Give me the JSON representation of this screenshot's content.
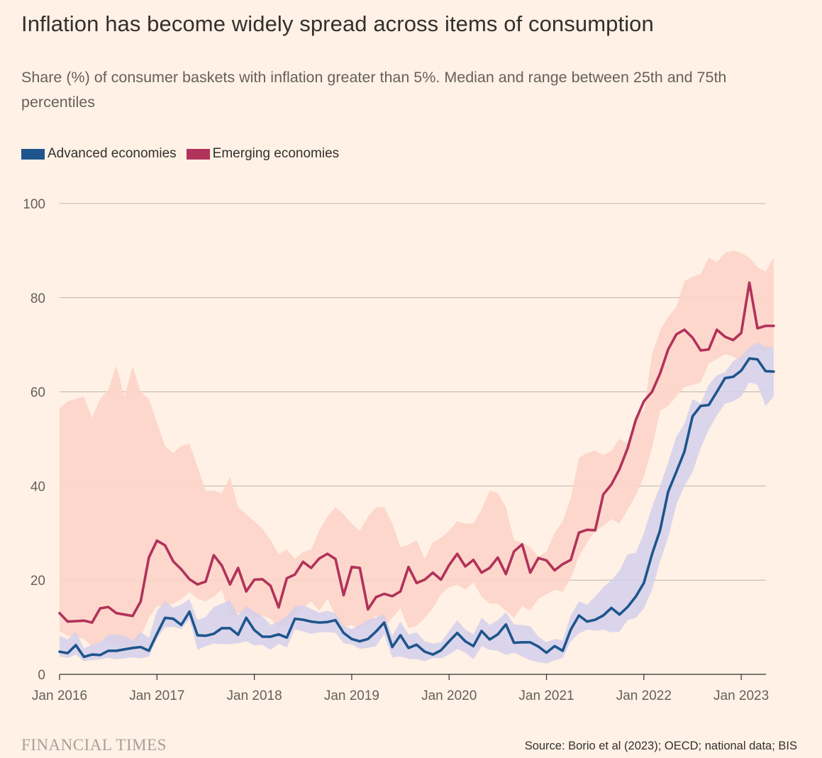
{
  "title": "Inflation has become widely spread across items of consumption",
  "subtitle": "Share (%) of consumer baskets with inflation greater than 5%. Median and range between 25th and 75th percentiles",
  "logo": "FINANCIAL TIMES",
  "source": "Source: Borio et al (2023); OECD; national data; BIS",
  "colors": {
    "background": "#FFF1E5",
    "advanced": "#1E558C",
    "advanced_band": "#D4D0EC",
    "emerging": "#B1325A",
    "emerging_band": "#FDD4C8",
    "grid": "#BFB3A8"
  },
  "chart_data": {
    "type": "line",
    "x_unit": "month",
    "x_start": "2016-01",
    "x_end": "2023-03",
    "ylim": [
      0,
      100
    ],
    "yticks": [
      0,
      20,
      40,
      60,
      80,
      100
    ],
    "xticks": [
      {
        "date": "2016-01",
        "label": "Jan 2016"
      },
      {
        "date": "2017-01",
        "label": "Jan 2017"
      },
      {
        "date": "2018-01",
        "label": "Jan 2018"
      },
      {
        "date": "2019-01",
        "label": "Jan 2019"
      },
      {
        "date": "2020-01",
        "label": "Jan 2020"
      },
      {
        "date": "2021-01",
        "label": "Jan 2021"
      },
      {
        "date": "2022-01",
        "label": "Jan 2022"
      },
      {
        "date": "2023-01",
        "label": "Jan 2023"
      }
    ],
    "grid": true,
    "legend_position": "top-left",
    "series": [
      {
        "name": "Advanced economies",
        "color": "#1E558C",
        "band_color": "#D4D0EC",
        "median": [
          4.8,
          4.5,
          6.2,
          3.7,
          4.2,
          4.1,
          5.0,
          5.0,
          5.3,
          5.6,
          5.8,
          5.0,
          8.6,
          12.0,
          11.8,
          10.5,
          13.3,
          8.3,
          8.2,
          8.6,
          9.8,
          9.8,
          8.4,
          12.0,
          9.4,
          8.0,
          8.0,
          8.5,
          7.8,
          11.8,
          11.6,
          11.2,
          11.0,
          11.1,
          11.5,
          8.8,
          7.5,
          7.0,
          7.5,
          9.1,
          11.0,
          5.8,
          8.3,
          5.6,
          6.3,
          4.8,
          4.2,
          5.1,
          7.0,
          8.8,
          7.0,
          6.0,
          9.2,
          7.4,
          8.5,
          10.6,
          6.7,
          6.8,
          6.8,
          5.9,
          4.6,
          6.0,
          5.0,
          9.5,
          12.5,
          11.2,
          11.6,
          12.5,
          14.1,
          12.7,
          14.3,
          16.5,
          19.4,
          25.5,
          30.6,
          38.8,
          43.0,
          47.3,
          54.8,
          57.0,
          57.2,
          60.0,
          62.9,
          63.2,
          64.5,
          67.1,
          66.9,
          64.4,
          64.3
        ],
        "p25": [
          3.8,
          3.5,
          4.2,
          2.8,
          3.0,
          3.2,
          3.5,
          3.2,
          3.4,
          3.6,
          3.4,
          3.8,
          7.5,
          10.0,
          10.1,
          9.6,
          11.8,
          5.2,
          6.0,
          6.5,
          6.4,
          6.4,
          6.6,
          7.0,
          6.1,
          6.3,
          5.2,
          6.5,
          5.7,
          9.6,
          9.1,
          8.6,
          8.9,
          9.0,
          8.8,
          6.6,
          6.4,
          5.4,
          5.6,
          6.0,
          8.5,
          3.6,
          3.8,
          3.3,
          3.2,
          2.8,
          3.5,
          3.4,
          4.2,
          5.4,
          4.6,
          3.2,
          6.0,
          5.2,
          5.0,
          4.1,
          4.6,
          3.8,
          3.0,
          2.6,
          2.3,
          3.0,
          3.5,
          7.0,
          8.7,
          9.5,
          9.3,
          9.5,
          8.9,
          9.1,
          11.5,
          12.0,
          14.0,
          18.0,
          24.0,
          29.0,
          36.0,
          40.0,
          43.0,
          48.0,
          52.0,
          55.0,
          57.5,
          58.0,
          59.0,
          62.0,
          61.5,
          57.0,
          59.0
        ],
        "p75": [
          8.2,
          7.4,
          9.1,
          5.5,
          6.3,
          6.8,
          8.4,
          8.5,
          8.2,
          7.2,
          9.0,
          7.8,
          13.5,
          15.5,
          14.2,
          14.8,
          16.0,
          11.5,
          12.2,
          14.3,
          15.0,
          15.8,
          12.5,
          14.5,
          13.3,
          12.3,
          10.5,
          11.2,
          12.4,
          14.4,
          14.7,
          13.9,
          13.1,
          13.5,
          13.0,
          10.2,
          9.6,
          10.5,
          11.5,
          12.0,
          12.8,
          8.2,
          11.2,
          8.5,
          8.9,
          7.0,
          6.5,
          6.8,
          9.2,
          11.5,
          9.5,
          8.5,
          12.0,
          10.5,
          11.5,
          13.2,
          10.6,
          10.5,
          10.2,
          8.0,
          6.8,
          7.5,
          7.2,
          12.5,
          15.5,
          14.8,
          16.5,
          18.5,
          20.0,
          22.0,
          25.5,
          25.8,
          30.0,
          35.5,
          40.0,
          45.0,
          50.5,
          53.2,
          58.5,
          57.5,
          61.5,
          63.5,
          64.2,
          66.5,
          67.5,
          69.5,
          70.5,
          69.5,
          69.5
        ]
      },
      {
        "name": "Emerging economies",
        "color": "#B1325A",
        "band_color": "#FDD4C8",
        "median": [
          13.0,
          11.2,
          11.3,
          11.4,
          11.0,
          14.0,
          14.3,
          13.0,
          12.7,
          12.4,
          15.5,
          24.8,
          28.4,
          27.4,
          24.0,
          22.3,
          20.2,
          19.1,
          19.7,
          25.3,
          23.1,
          19.1,
          22.6,
          17.6,
          20.1,
          20.2,
          18.8,
          14.2,
          20.4,
          21.2,
          23.9,
          22.6,
          24.6,
          25.6,
          24.5,
          16.8,
          22.8,
          22.6,
          13.8,
          16.4,
          17.1,
          16.6,
          17.6,
          22.8,
          19.4,
          20.1,
          21.6,
          20.1,
          23.2,
          25.6,
          22.9,
          24.3,
          21.6,
          22.6,
          24.8,
          21.3,
          26.1,
          27.6,
          21.6,
          24.7,
          24.2,
          22.1,
          23.4,
          24.3,
          30.1,
          30.7,
          30.6,
          38.2,
          40.3,
          43.6,
          48.0,
          54.0,
          58.0,
          60.0,
          63.9,
          69.0,
          72.2,
          73.2,
          71.5,
          68.8,
          69.0,
          73.2,
          71.7,
          71.0,
          72.5,
          83.2,
          73.5,
          74.0,
          74.0
        ],
        "p25": [
          9.2,
          8.2,
          8.0,
          7.5,
          6.0,
          6.8,
          7.2,
          6.0,
          6.0,
          5.8,
          8.0,
          12.0,
          14.5,
          14.5,
          15.0,
          16.0,
          17.5,
          16.0,
          15.5,
          16.5,
          18.0,
          12.0,
          13.0,
          12.5,
          11.5,
          12.5,
          11.8,
          10.0,
          10.5,
          12.5,
          14.0,
          15.5,
          13.5,
          16.0,
          12.5,
          10.0,
          10.5,
          9.5,
          10.5,
          12.5,
          9.8,
          12.0,
          14.0,
          9.8,
          10.3,
          12.0,
          14.0,
          17.0,
          18.5,
          19.0,
          18.0,
          19.5,
          16.5,
          15.0,
          15.0,
          13.5,
          12.0,
          14.5,
          13.5,
          16.0,
          17.0,
          18.0,
          17.5,
          20.5,
          25.0,
          28.0,
          30.5,
          31.5,
          33.0,
          32.0,
          35.0,
          38.0,
          42.0,
          48.0,
          56.0,
          57.0,
          59.0,
          61.0,
          61.5,
          62.0,
          66.0,
          67.0,
          68.0,
          67.5,
          66.5,
          68.5,
          69.0,
          68.5,
          69.5
        ],
        "p75": [
          56.5,
          58.0,
          58.5,
          59.0,
          54.5,
          58.5,
          60.5,
          65.5,
          59.0,
          65.5,
          60.0,
          58.5,
          53.5,
          48.5,
          47.0,
          48.5,
          49.0,
          44.0,
          39.0,
          39.0,
          38.5,
          42.0,
          35.5,
          34.0,
          32.5,
          31.0,
          28.5,
          25.5,
          26.5,
          24.5,
          26.0,
          26.5,
          30.5,
          33.5,
          35.5,
          34.0,
          32.0,
          30.5,
          33.5,
          35.5,
          35.5,
          32.0,
          27.0,
          27.5,
          28.5,
          24.5,
          28.0,
          29.0,
          30.5,
          32.5,
          32.0,
          32.0,
          35.0,
          39.0,
          38.5,
          35.5,
          28.5,
          28.0,
          27.0,
          25.0,
          26.0,
          30.0,
          32.5,
          37.5,
          46.0,
          47.0,
          47.5,
          46.5,
          47.5,
          50.0,
          49.0,
          55.0,
          56.0,
          68.0,
          73.0,
          76.0,
          78.0,
          83.5,
          84.5,
          85.0,
          88.5,
          87.5,
          89.5,
          90.0,
          89.5,
          88.5,
          86.5,
          85.5,
          88.5
        ]
      }
    ]
  }
}
